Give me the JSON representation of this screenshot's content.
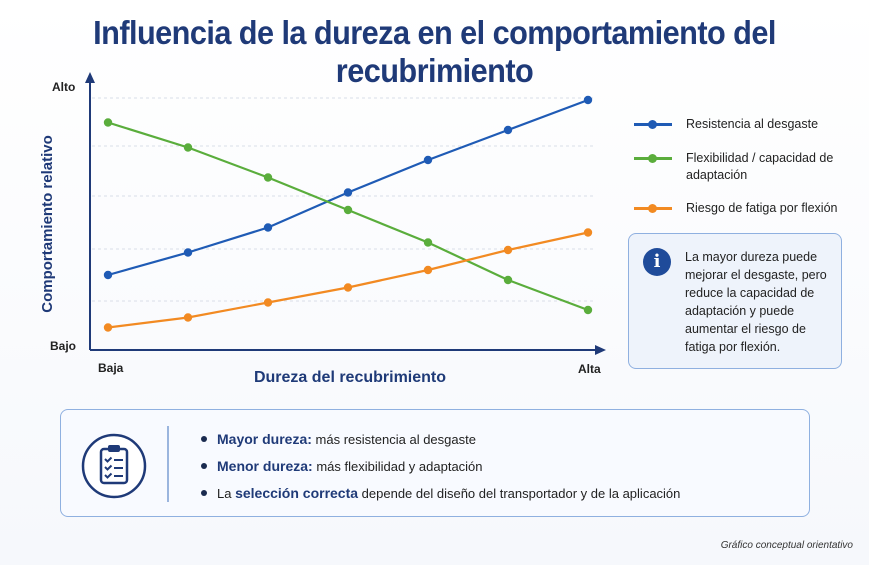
{
  "title": "Influencia de la dureza en el comportamiento del recubrimiento",
  "chart_data": {
    "type": "line",
    "xlabel": "Dureza del recubrimiento",
    "ylabel": "Comportamiento relativo",
    "x_tick_labels": [
      "Baja",
      "Alta"
    ],
    "y_tick_labels": [
      "Bajo",
      "Alto"
    ],
    "x": [
      1,
      2,
      3,
      4,
      5,
      6,
      7
    ],
    "ylim": [
      0,
      10
    ],
    "grid": true,
    "legend_placement": "right",
    "series": [
      {
        "name": "Resistencia al desgaste",
        "color": "#1f5bb5",
        "values": [
          2.6,
          3.5,
          4.5,
          5.9,
          7.2,
          8.4,
          9.6
        ]
      },
      {
        "name": "Flexibilidad / capacidad de adaptación",
        "color": "#5aad3c",
        "values": [
          8.7,
          7.7,
          6.5,
          5.2,
          3.9,
          2.4,
          1.2
        ]
      },
      {
        "name": "Riesgo de fatiga por flexión",
        "color": "#f28a22",
        "values": [
          0.5,
          0.9,
          1.5,
          2.1,
          2.8,
          3.6,
          4.3
        ]
      }
    ]
  },
  "info_box": {
    "icon": "info-icon",
    "text": "La mayor dureza puede mejorar el desgaste, pero reduce la capacidad de adaptación y puede aumentar el riesgo de fatiga por flexión."
  },
  "summary": {
    "icon": "clipboard-checklist-icon",
    "items": [
      {
        "bold": "Mayor dureza:",
        "text": "más resistencia al desgaste",
        "prefix": ""
      },
      {
        "bold": "Menor dureza:",
        "text": "más flexibilidad y adaptación",
        "prefix": ""
      },
      {
        "prefix": "La ",
        "bold": "selección correcta",
        "text": "depende del diseño del transportador y de la aplicación"
      }
    ]
  },
  "footnote": "Gráfico conceptual orientativo",
  "colors": {
    "title": "#1f3a78",
    "axis": "#1f3a78",
    "box_border": "#8fb0e0"
  }
}
